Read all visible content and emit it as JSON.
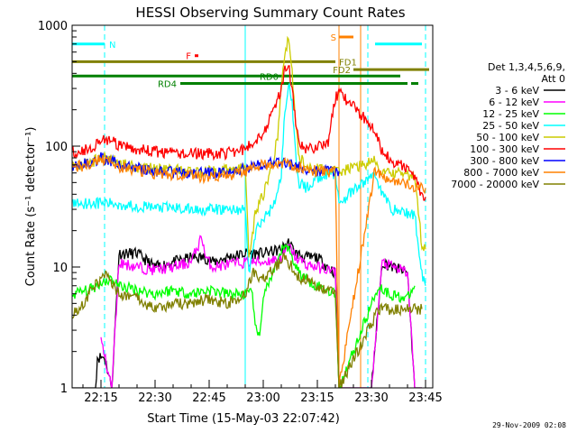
{
  "chart_data": {
    "type": "line",
    "title": "HESSI Observing Summary Count Rates",
    "xlabel": "Start Time (15-May-03 22:07:42)",
    "ylabel": "Count Rate (s⁻¹ detector⁻¹)",
    "y_scale": "log",
    "ylim": [
      1,
      1000
    ],
    "xlim": [
      "22:07:42",
      "23:47:00"
    ],
    "x_ticks": [
      "22:15",
      "22:30",
      "22:45",
      "23:00",
      "23:15",
      "23:30",
      "23:45"
    ],
    "y_ticks": [
      "1",
      "10",
      "100",
      "1000"
    ],
    "legend": {
      "title_line1": "Det 1,3,4,5,6,9,",
      "title_line2": "Att 0",
      "placement": "right"
    },
    "series": [
      {
        "name": "3 - 6 keV",
        "color": "#000000",
        "x": [
          "22:07",
          "22:12",
          "22:13.5",
          "22:14",
          "22:16",
          "22:18",
          "22:20",
          "22:25",
          "22:30",
          "22:35",
          "22:40",
          "22:44",
          "22:46",
          "22:50",
          "22:55",
          "23:00",
          "23:05",
          "23:07",
          "23:09",
          "23:12",
          "23:15",
          "23:18",
          "23:20",
          "23:21",
          "23:28",
          "23:30",
          "23:33",
          "23:36",
          "23:40",
          "23:42",
          "23:44"
        ],
        "y": [
          1,
          1,
          1,
          1.8,
          1.8,
          1.0,
          13,
          13,
          10,
          11,
          12,
          12,
          11,
          12,
          13,
          13,
          14,
          16,
          13,
          12,
          12,
          10,
          9,
          1,
          1,
          1,
          11,
          10,
          9,
          1,
          1
        ]
      },
      {
        "name": "6 - 12 keV",
        "color": "#ff00ff",
        "x": [
          "22:15",
          "22:18",
          "22:20",
          "22:25",
          "22:30",
          "22:35",
          "22:40",
          "22:43",
          "22:44",
          "22:46",
          "22:50",
          "22:55",
          "23:00",
          "23:05",
          "23:07",
          "23:09",
          "23:12",
          "23:15",
          "23:18",
          "23:20",
          "23:21",
          "23:30",
          "23:33",
          "23:36",
          "23:40",
          "23:42",
          "23:44"
        ],
        "y": [
          2.5,
          1,
          11,
          10,
          9.5,
          10,
          11,
          18,
          12,
          10,
          10.5,
          11,
          11,
          12,
          15,
          12,
          10.5,
          10,
          9.5,
          9,
          1,
          1,
          11,
          10,
          9,
          1,
          1
        ]
      },
      {
        "name": "12 - 25 keV",
        "color": "#00ff00",
        "x": [
          "22:07",
          "22:12",
          "22:15",
          "22:18",
          "22:20",
          "22:25",
          "22:30",
          "22:35",
          "22:40",
          "22:45",
          "22:50",
          "22:55",
          "22:57",
          "22:58",
          "22:59",
          "23:00",
          "23:03",
          "23:06",
          "23:08",
          "23:10",
          "23:12",
          "23:15",
          "23:18",
          "23:20",
          "23:21",
          "23:32",
          "23:35",
          "23:40",
          "23:42"
        ],
        "y": [
          6,
          6.5,
          7.5,
          8,
          7,
          6.5,
          6,
          6.5,
          6,
          6.5,
          6,
          6,
          6,
          3,
          2.5,
          6,
          9,
          16,
          12,
          9,
          8,
          7,
          6.5,
          6,
          1,
          7,
          6,
          5.5,
          7
        ]
      },
      {
        "name": "25 - 50 keV",
        "color": "#00ffff",
        "x": [
          "22:07",
          "22:15",
          "22:20",
          "22:25",
          "22:30",
          "22:35",
          "22:40",
          "22:45",
          "22:50",
          "22:55",
          "22:56",
          "22:58",
          "23:00",
          "23:02",
          "23:04",
          "23:05",
          "23:06",
          "23:07",
          "23:08",
          "23:09",
          "23:10",
          "23:12",
          "23:15",
          "23:18",
          "23:20",
          "23:21",
          "23:31",
          "23:33",
          "23:36",
          "23:40",
          "23:42",
          "23:44",
          "23:45"
        ],
        "y": [
          34,
          34,
          33,
          32,
          31,
          31,
          30,
          30,
          30,
          30,
          9,
          20,
          25,
          30,
          40,
          60,
          200,
          330,
          220,
          80,
          50,
          45,
          55,
          60,
          60,
          34,
          60,
          40,
          30,
          28,
          27,
          9,
          7
        ]
      },
      {
        "name": "50 - 100 keV",
        "color": "#cccc00",
        "x": [
          "22:07",
          "22:12",
          "22:15",
          "22:18",
          "22:20",
          "22:25",
          "22:30",
          "22:35",
          "22:40",
          "22:45",
          "22:50",
          "22:55",
          "22:56",
          "22:58",
          "23:00",
          "23:02",
          "23:04",
          "23:05",
          "23:06",
          "23:07",
          "23:08",
          "23:09",
          "23:10",
          "23:12",
          "23:15",
          "23:18",
          "23:20",
          "23:21",
          "23:31",
          "23:33",
          "23:36",
          "23:40",
          "23:42",
          "23:44",
          "23:45"
        ],
        "y": [
          70,
          72,
          82,
          78,
          72,
          68,
          66,
          64,
          62,
          62,
          64,
          66,
          12,
          30,
          40,
          60,
          120,
          300,
          600,
          800,
          400,
          150,
          80,
          70,
          65,
          63,
          62,
          62,
          75,
          60,
          60,
          58,
          56,
          15,
          14
        ]
      },
      {
        "name": "100 - 300 keV",
        "color": "#ff0000",
        "x": [
          "22:07",
          "22:12",
          "22:15",
          "22:18",
          "22:20",
          "22:25",
          "22:30",
          "22:35",
          "22:40",
          "22:45",
          "22:50",
          "22:55",
          "22:56",
          "23:00",
          "23:03",
          "23:05",
          "23:06",
          "23:07",
          "23:08",
          "23:09",
          "23:10",
          "23:12",
          "23:15",
          "23:18",
          "23:20",
          "23:21",
          "23:31",
          "23:33",
          "23:36",
          "23:40",
          "23:42",
          "23:44",
          "23:45"
        ],
        "y": [
          90,
          95,
          115,
          110,
          100,
          95,
          90,
          88,
          87,
          87,
          88,
          95,
          100,
          130,
          200,
          300,
          430,
          480,
          300,
          150,
          100,
          95,
          100,
          110,
          250,
          280,
          140,
          90,
          75,
          65,
          55,
          40,
          38
        ]
      },
      {
        "name": "300 - 800 keV",
        "color": "#0000ff",
        "x": [
          "22:07",
          "22:12",
          "22:15",
          "22:18",
          "22:20",
          "22:25",
          "22:30",
          "22:35",
          "22:40",
          "22:45",
          "22:50",
          "22:55",
          "23:00",
          "23:05",
          "23:08",
          "23:10",
          "23:12",
          "23:15",
          "23:18",
          "23:20",
          "23:21"
        ],
        "y": [
          70,
          72,
          80,
          76,
          70,
          66,
          62,
          61,
          60,
          60,
          61,
          65,
          72,
          75,
          70,
          68,
          65,
          63,
          62,
          62,
          62
        ]
      },
      {
        "name": "800 - 7000 keV",
        "color": "#ff8000",
        "x": [
          "22:07",
          "22:12",
          "22:15",
          "22:18",
          "22:20",
          "22:25",
          "22:30",
          "22:35",
          "22:40",
          "22:45",
          "22:50",
          "22:55",
          "23:00",
          "23:05",
          "23:08",
          "23:10",
          "23:12",
          "23:15",
          "23:18",
          "23:20",
          "23:21",
          "23:31",
          "23:33",
          "23:36",
          "23:40",
          "23:42",
          "23:44",
          "23:45"
        ],
        "y": [
          68,
          70,
          78,
          74,
          68,
          64,
          60,
          58,
          57,
          56,
          57,
          62,
          70,
          74,
          70,
          68,
          66,
          62,
          62,
          62,
          1,
          65,
          55,
          50,
          48,
          47,
          46,
          45
        ]
      },
      {
        "name": "7000 - 20000 keV",
        "color": "#808000",
        "x": [
          "22:07",
          "22:10",
          "22:13",
          "22:16",
          "22:18",
          "22:20",
          "22:25",
          "22:30",
          "22:35",
          "22:40",
          "22:45",
          "22:50",
          "22:55",
          "22:57",
          "23:00",
          "23:03",
          "23:06",
          "23:08",
          "23:10",
          "23:12",
          "23:15",
          "23:18",
          "23:20",
          "23:21",
          "23:32",
          "23:35",
          "23:40",
          "23:42",
          "23:44"
        ],
        "y": [
          4,
          5,
          7,
          8.5,
          7.5,
          6,
          5.5,
          4.5,
          5,
          5,
          5.5,
          5,
          6,
          9,
          8,
          10,
          12,
          10,
          8,
          8,
          7,
          6.5,
          6,
          1,
          4.5,
          4.5,
          4.5,
          4.5,
          4.5
        ]
      }
    ],
    "state_bars": [
      {
        "label": "N",
        "color": "#00ffff",
        "segments": [
          [
            "22:07",
            "22:16"
          ],
          [
            "23:31",
            "23:44"
          ]
        ],
        "level": 700
      },
      {
        "label": "F",
        "color": "#ff0000",
        "segments": [
          [
            "22:41",
            "22:42"
          ]
        ],
        "level": 560
      },
      {
        "label": "S",
        "color": "#ff8000",
        "segments": [
          [
            "23:21",
            "23:25"
          ]
        ],
        "level": 800
      },
      {
        "label": "FD1",
        "color": "#808000",
        "segments": [
          [
            "22:07",
            "23:20"
          ]
        ],
        "level": 500
      },
      {
        "label": "FD2",
        "color": "#808000",
        "segments": [
          [
            "23:25",
            "23:46"
          ]
        ],
        "level": 430
      },
      {
        "label": "RD0",
        "color": "#008000",
        "segments": [
          [
            "22:07",
            "23:38"
          ]
        ],
        "level": 380
      },
      {
        "label": "RD4",
        "color": "#008000",
        "segments": [
          [
            "22:37",
            "23:40"
          ],
          [
            "23:41",
            "23:43"
          ]
        ],
        "level": 330
      }
    ],
    "vlines": [
      {
        "x": "22:16",
        "color": "#00ffff",
        "style": "dashed"
      },
      {
        "x": "23:29",
        "color": "#00ffff",
        "style": "dashed"
      },
      {
        "x": "23:45",
        "color": "#00ffff",
        "style": "dashed"
      },
      {
        "x": "22:55",
        "color": "#00ffff",
        "style": "solid"
      },
      {
        "x": "23:21",
        "color": "#ff8000",
        "style": "solid"
      },
      {
        "x": "23:27",
        "color": "#ff8000",
        "style": "solid"
      },
      {
        "x": "22:07",
        "color": "#00ffff",
        "style": "solid"
      }
    ]
  },
  "footer": {
    "timestamp": "29-Nov-2009 02:08"
  }
}
